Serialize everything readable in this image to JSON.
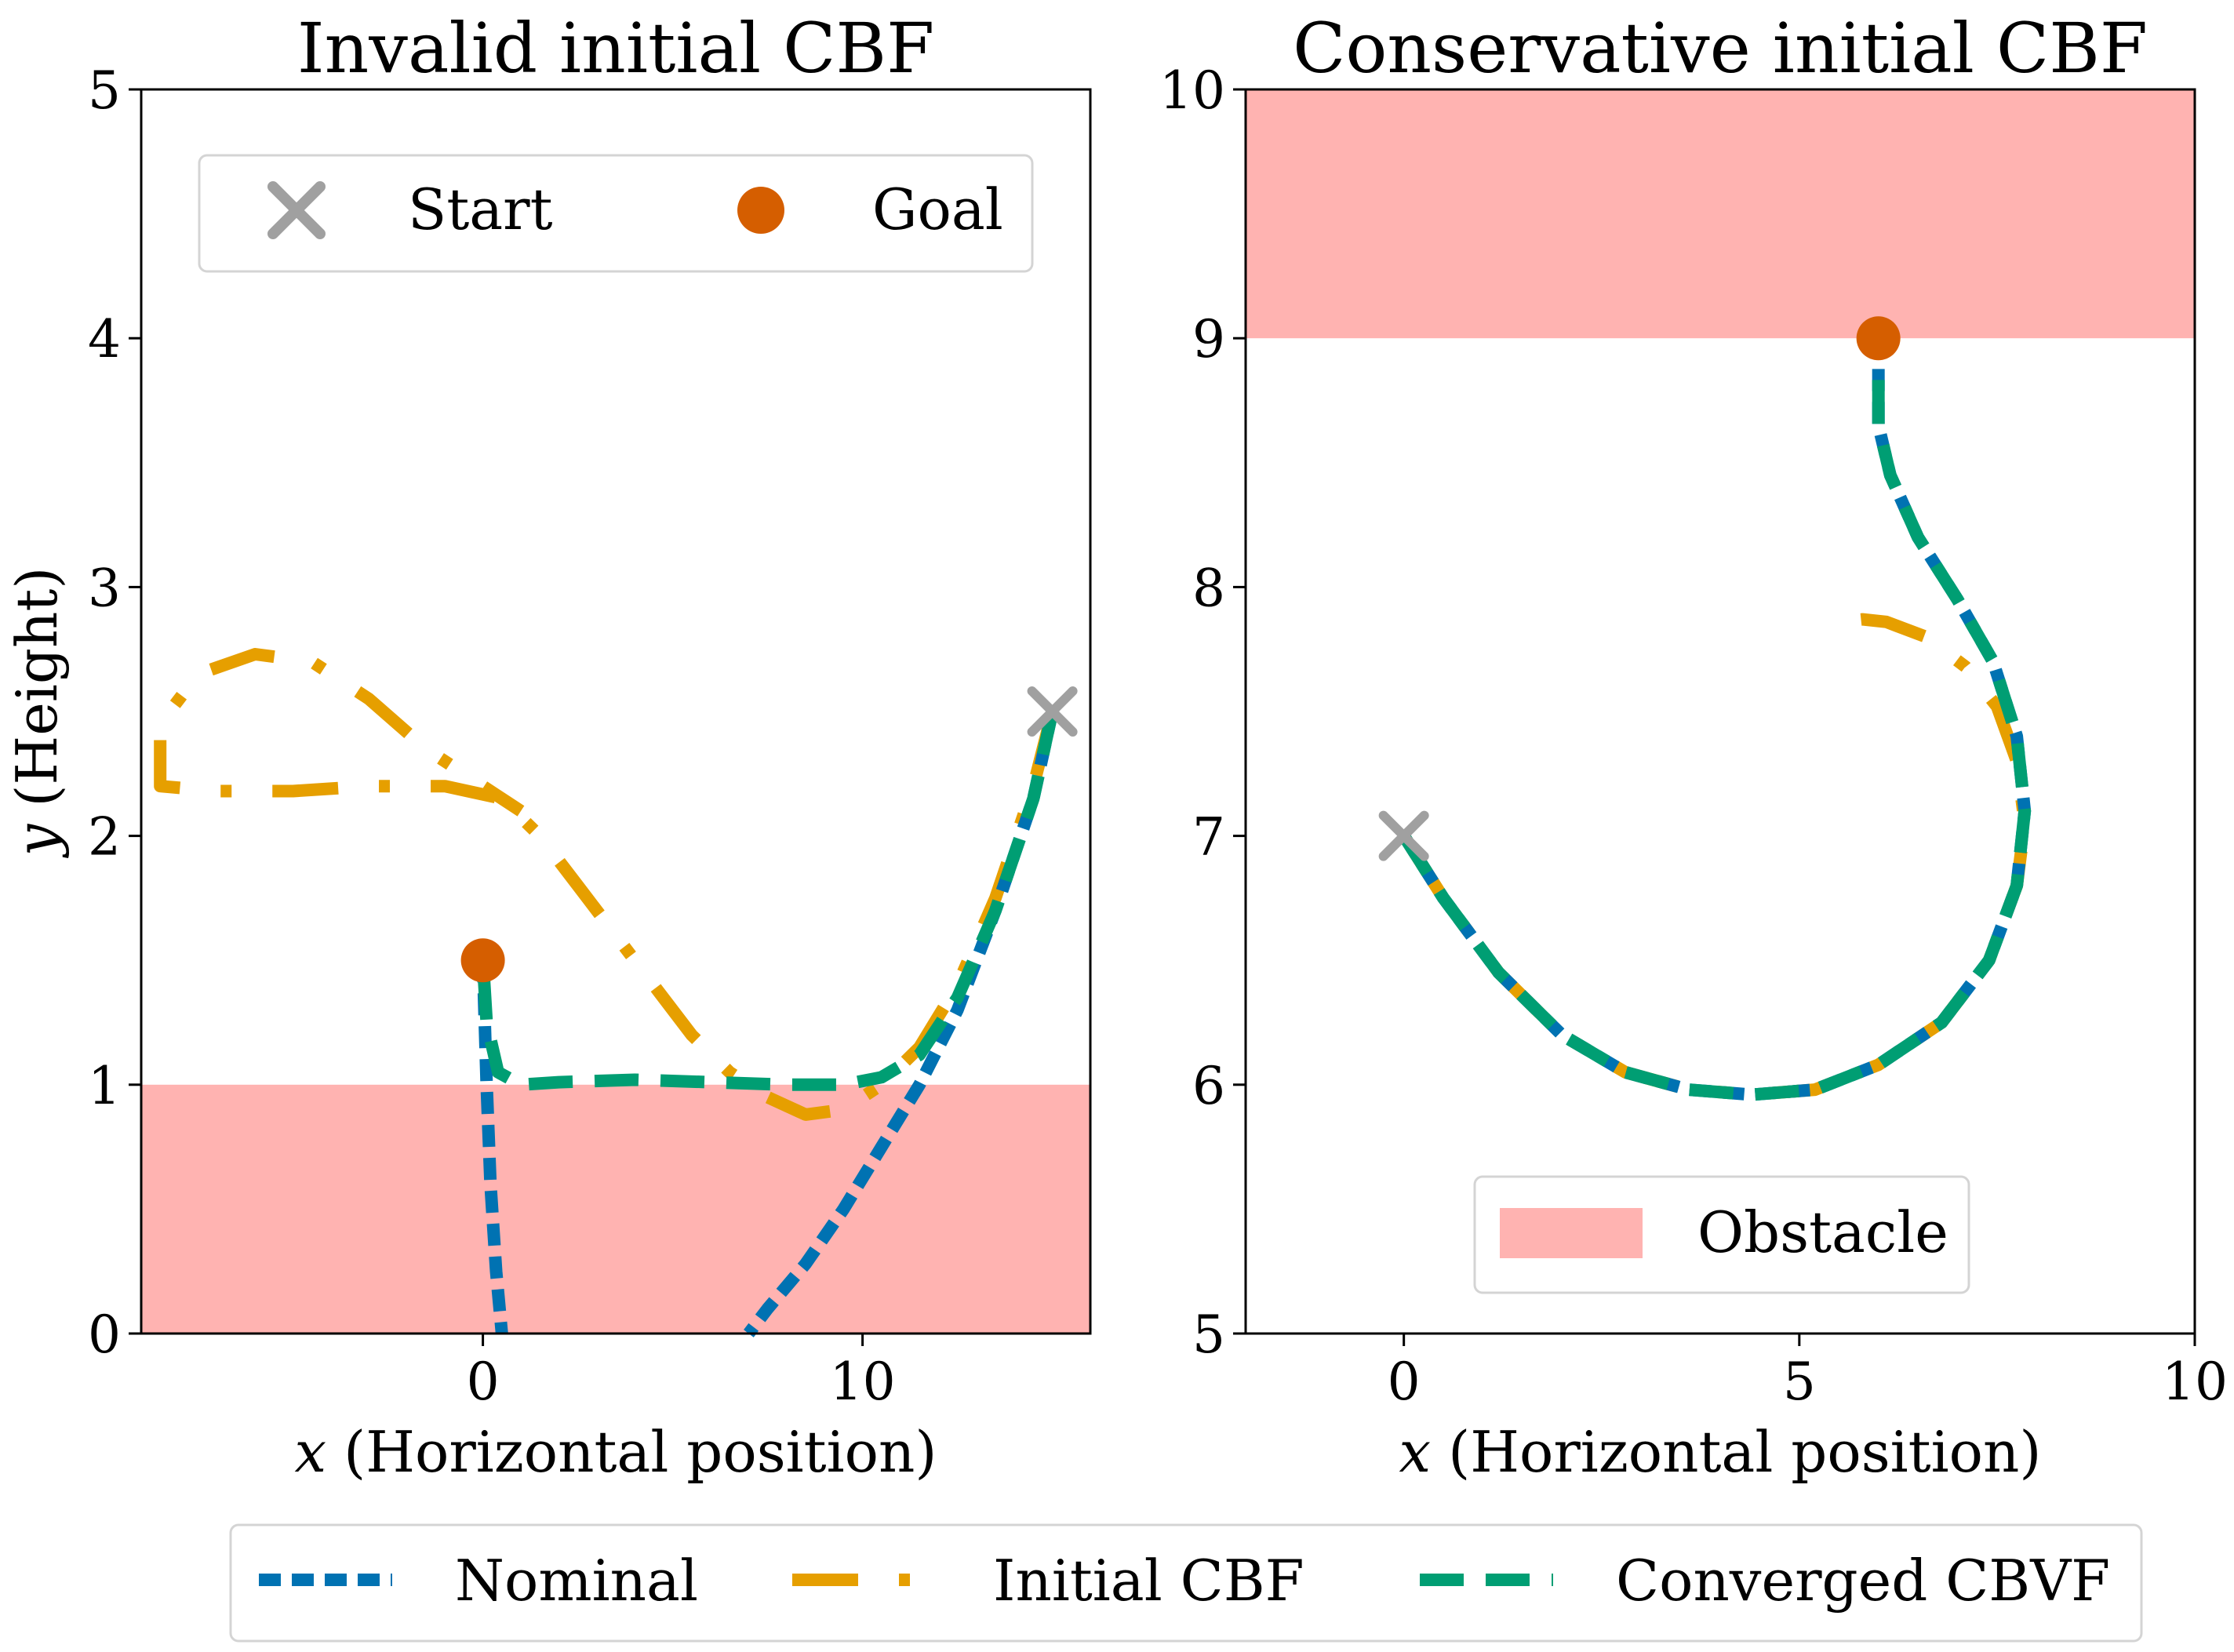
{
  "chart_data": [
    {
      "type": "line",
      "title": "Invalid initial CBF",
      "xlabel_var": "x",
      "xlabel": "(Horizontal position)",
      "ylabel_var": "y",
      "ylabel": "(Height)",
      "xlim": [
        -9,
        16
      ],
      "ylim": [
        0,
        5
      ],
      "xticks": [
        0,
        10
      ],
      "yticks": [
        0,
        1,
        2,
        3,
        4,
        5
      ],
      "grid": false,
      "obstacle": {
        "x": [
          -9,
          16
        ],
        "y": [
          0,
          1
        ]
      },
      "start": {
        "x": 15,
        "y": 2.5
      },
      "goal": {
        "x": 0,
        "y": 1.5
      },
      "legend_placement": "top",
      "series": [
        {
          "key": "nominal",
          "x": [
            15,
            14.5,
            13.5,
            12.5,
            11.5,
            10.5,
            9.5,
            8.5,
            7.5,
            7
          ],
          "y": [
            2.5,
            2.15,
            1.7,
            1.3,
            1.0,
            0.75,
            0.5,
            0.28,
            0.1,
            0
          ]
        },
        {
          "key": "nominal",
          "x": [
            0,
            0.1,
            0.2,
            0.35,
            0.5
          ],
          "y": [
            1.5,
            1.0,
            0.6,
            0.25,
            0
          ]
        },
        {
          "key": "initial",
          "x": [
            15,
            14.5,
            13.5,
            12.5,
            11.5,
            10.5,
            9.5,
            8.5,
            7.5,
            6.5,
            5.5,
            4.5,
            3.5,
            2.5,
            1.5,
            0.5,
            -1,
            -3,
            -5,
            -7,
            -8.5,
            -8.5,
            -7.5,
            -6,
            -4.5,
            -3,
            -1.5,
            0,
            1
          ],
          "y": [
            2.5,
            2.2,
            1.75,
            1.4,
            1.15,
            1.0,
            0.9,
            0.88,
            0.95,
            1.05,
            1.2,
            1.4,
            1.6,
            1.8,
            2.0,
            2.15,
            2.2,
            2.2,
            2.18,
            2.18,
            2.2,
            2.45,
            2.65,
            2.73,
            2.7,
            2.55,
            2.35,
            2.2,
            2.1
          ]
        },
        {
          "key": "converged",
          "x": [
            15,
            14.5,
            13.5,
            12.5,
            11.5,
            10.5,
            9.5,
            8,
            6,
            4,
            2,
            1,
            0.4,
            0.1,
            0
          ],
          "y": [
            2.5,
            2.15,
            1.7,
            1.35,
            1.12,
            1.03,
            1.0,
            1.0,
            1.01,
            1.02,
            1.01,
            1.0,
            1.05,
            1.25,
            1.5
          ]
        }
      ]
    },
    {
      "type": "line",
      "title": "Conservative initial CBF",
      "xlabel_var": "x",
      "xlabel": "(Horizontal position)",
      "xlim": [
        -2,
        10
      ],
      "ylim": [
        5,
        10
      ],
      "xticks": [
        0,
        5,
        10
      ],
      "yticks": [
        5,
        6,
        7,
        8,
        9,
        10
      ],
      "grid": false,
      "obstacle": {
        "x": [
          -2,
          10
        ],
        "y": [
          9,
          10
        ]
      },
      "start": {
        "x": 0,
        "y": 7
      },
      "goal": {
        "x": 6,
        "y": 9
      },
      "legend_placement": "bottom",
      "series": [
        {
          "key": "nominal",
          "x": [
            0,
            0.5,
            1.2,
            2,
            2.8,
            3.6,
            4.4,
            5.2,
            6,
            6.8,
            7.4,
            7.75,
            7.85,
            7.75,
            7.45,
            7.0,
            6.5,
            6.15,
            6.0,
            6.0,
            6.0
          ],
          "y": [
            7,
            6.75,
            6.45,
            6.2,
            6.05,
            5.98,
            5.96,
            5.98,
            6.08,
            6.25,
            6.5,
            6.8,
            7.1,
            7.4,
            7.7,
            7.95,
            8.2,
            8.45,
            8.65,
            8.85,
            9.0
          ]
        },
        {
          "key": "initial",
          "x": [
            0,
            0.5,
            1.2,
            2,
            2.8,
            3.6,
            4.4,
            5.2,
            6,
            6.8,
            7.4,
            7.75,
            7.85,
            7.75,
            7.5,
            7.1,
            6.6,
            6.1,
            5.8,
            5.5
          ],
          "y": [
            7,
            6.75,
            6.45,
            6.2,
            6.05,
            5.98,
            5.96,
            5.98,
            6.08,
            6.25,
            6.5,
            6.8,
            7.05,
            7.3,
            7.52,
            7.68,
            7.8,
            7.86,
            7.87,
            7.86
          ]
        },
        {
          "key": "converged",
          "x": [
            0,
            0.5,
            1.2,
            2,
            2.8,
            3.6,
            4.4,
            5.2,
            6,
            6.8,
            7.4,
            7.75,
            7.85,
            7.75,
            7.45,
            7.0,
            6.5,
            6.15,
            6.0,
            6.0,
            6.0
          ],
          "y": [
            7,
            6.75,
            6.45,
            6.2,
            6.05,
            5.98,
            5.96,
            5.98,
            6.08,
            6.25,
            6.5,
            6.8,
            7.1,
            7.4,
            7.7,
            7.95,
            8.2,
            8.45,
            8.65,
            8.85,
            9.0
          ]
        }
      ]
    }
  ],
  "legends": {
    "left": {
      "start": "Start",
      "goal": "Goal"
    },
    "right": {
      "obstacle": "Obstacle"
    },
    "bottom": {
      "nominal": "Nominal",
      "initial": "Initial CBF",
      "converged": "Converged CBVF"
    }
  },
  "colors": {
    "nominal": "#0072B2",
    "initial": "#E69F00",
    "converged": "#009E73",
    "obstacle": "#FFB3B1",
    "start": "#A0A0A0",
    "goal": "#D55E00"
  }
}
